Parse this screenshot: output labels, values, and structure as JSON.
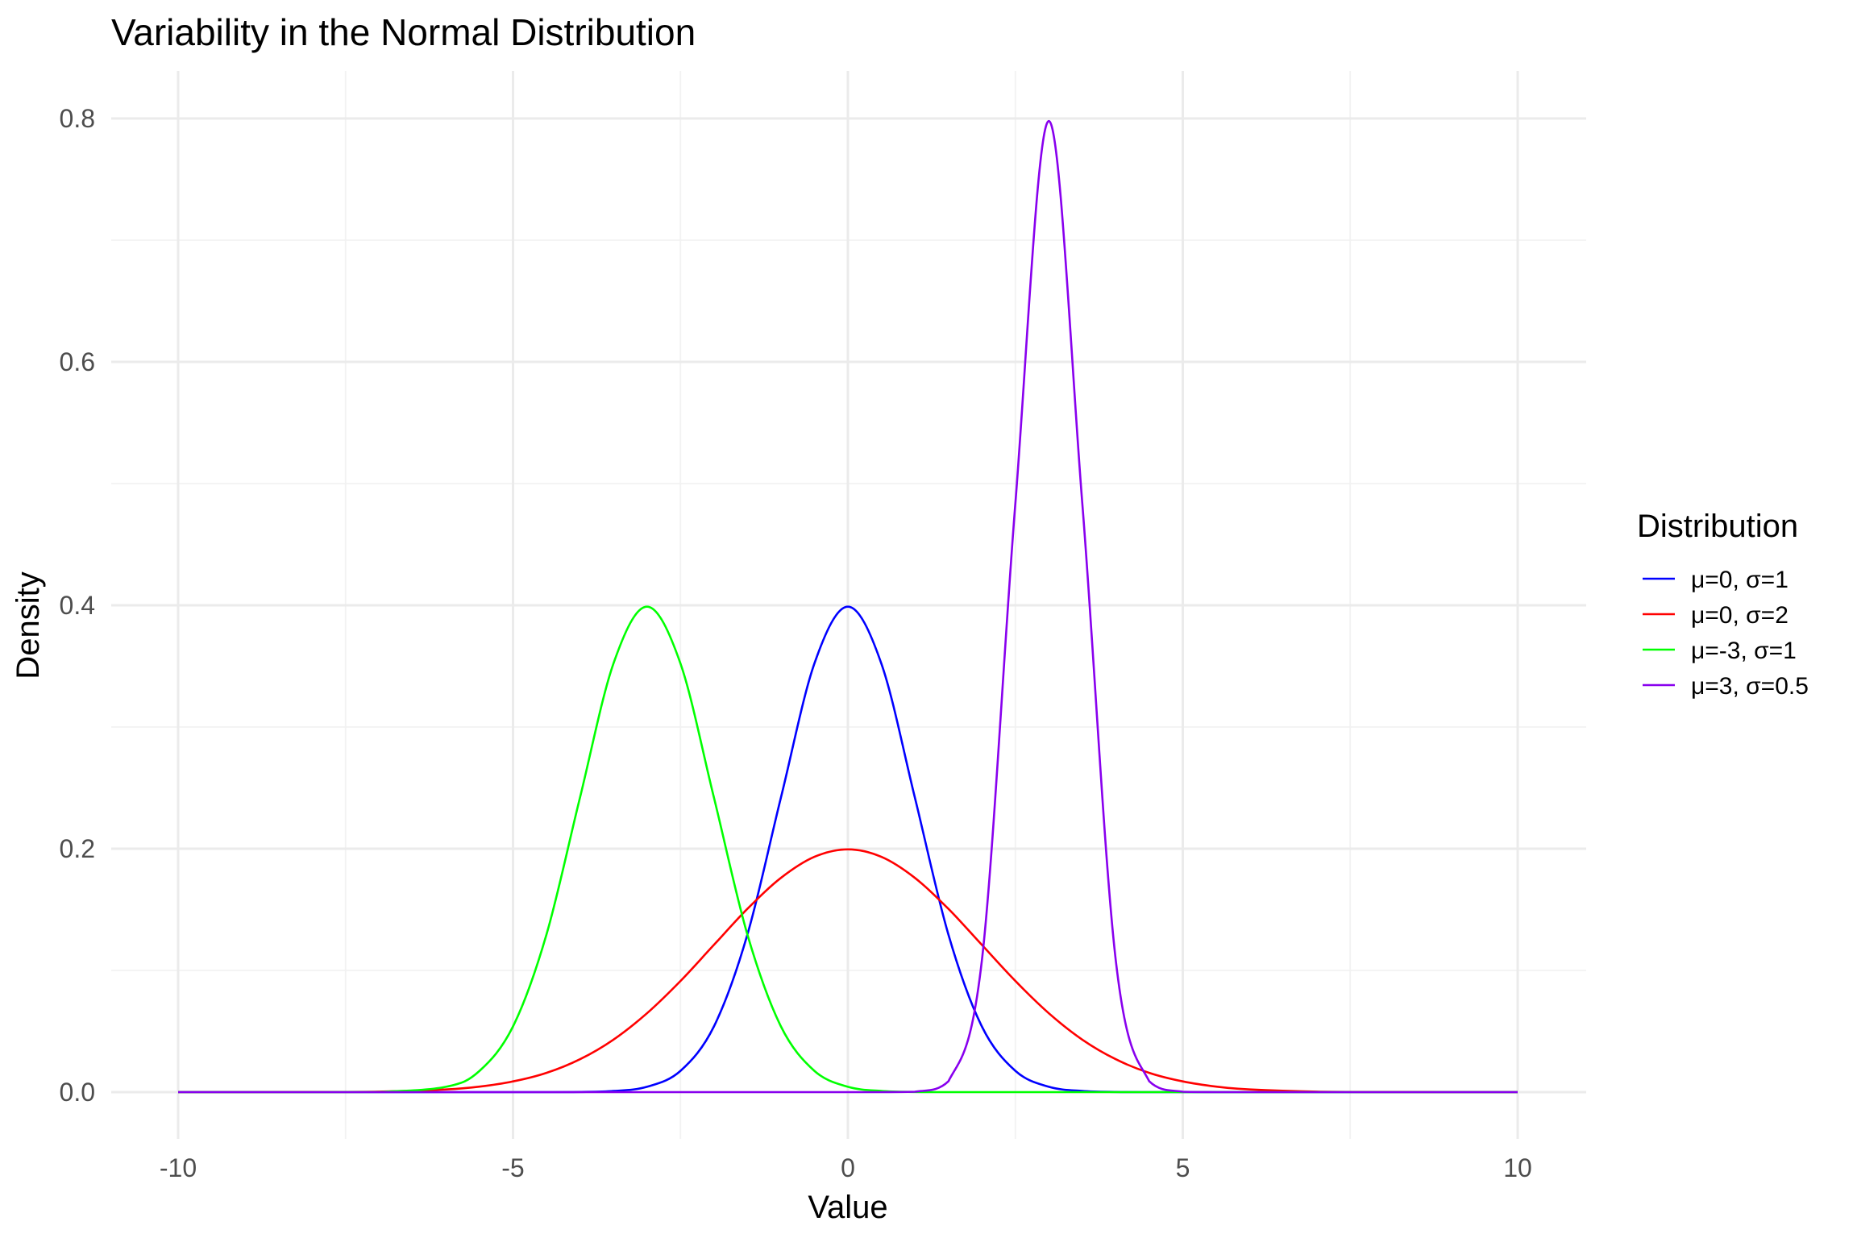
{
  "chart_data": {
    "type": "line",
    "title": "Variability in the Normal Distribution",
    "xlabel": "Value",
    "ylabel": "Density",
    "xlim": [
      -10,
      10
    ],
    "ylim": [
      0,
      0.8
    ],
    "x_ticks": [
      -10,
      -5,
      0,
      5,
      10
    ],
    "y_ticks": [
      0.0,
      0.2,
      0.4,
      0.6,
      0.8
    ],
    "x_tick_labels": [
      "-10",
      "-5",
      "0",
      "5",
      "10"
    ],
    "y_tick_labels": [
      "0.0",
      "0.2",
      "0.4",
      "0.6",
      "0.8"
    ],
    "grid": true,
    "legend": {
      "title": "Distribution",
      "position": "right"
    },
    "x": [
      -10,
      -9,
      -8,
      -7,
      -6,
      -5.5,
      -5,
      -4.5,
      -4,
      -3.5,
      -3,
      -2.5,
      -2,
      -1.5,
      -1,
      -0.5,
      0,
      0.5,
      1,
      1.5,
      2,
      2.5,
      3,
      3.5,
      4,
      4.5,
      5,
      5.5,
      6,
      7,
      8,
      9,
      10
    ],
    "series": [
      {
        "name": "μ=0, σ=1",
        "color": "#0000ff",
        "values": [
          0,
          0,
          0,
          0,
          0,
          0,
          0,
          0,
          0.0001,
          0.0009,
          0.0044,
          0.0175,
          0.054,
          0.1295,
          0.242,
          0.3521,
          0.3989,
          0.3521,
          0.242,
          0.1295,
          0.054,
          0.0175,
          0.0044,
          0.0009,
          0.0001,
          0,
          0,
          0,
          0,
          0,
          0,
          0,
          0
        ]
      },
      {
        "name": "μ=0, σ=2",
        "color": "#ff0000",
        "values": [
          0,
          0,
          0.0001,
          0.0004,
          0.0022,
          0.0045,
          0.0088,
          0.0158,
          0.027,
          0.0431,
          0.0648,
          0.0913,
          0.121,
          0.1506,
          0.176,
          0.1933,
          0.1995,
          0.1933,
          0.176,
          0.1506,
          0.121,
          0.0913,
          0.0648,
          0.0431,
          0.027,
          0.0158,
          0.0088,
          0.0045,
          0.0022,
          0.0004,
          0.0001,
          0,
          0
        ]
      },
      {
        "name": "μ=-3, σ=1",
        "color": "#00ff00",
        "values": [
          0,
          0,
          0,
          0.0001,
          0.0044,
          0.0175,
          0.054,
          0.1295,
          0.242,
          0.3521,
          0.3989,
          0.3521,
          0.242,
          0.1295,
          0.054,
          0.0175,
          0.0044,
          0.0009,
          0.0001,
          0,
          0,
          0,
          0,
          0,
          0,
          0,
          0,
          0,
          0,
          0,
          0,
          0,
          0
        ]
      },
      {
        "name": "μ=3, σ=0.5",
        "color": "#8800ee",
        "values": [
          0,
          0,
          0,
          0,
          0,
          0,
          0,
          0,
          0,
          0,
          0,
          0,
          0,
          0,
          0,
          0,
          0,
          0,
          0.0003,
          0.0089,
          0.108,
          0.4839,
          0.7979,
          0.4839,
          0.108,
          0.0089,
          0.0003,
          0,
          0,
          0,
          0,
          0,
          0
        ]
      }
    ]
  }
}
